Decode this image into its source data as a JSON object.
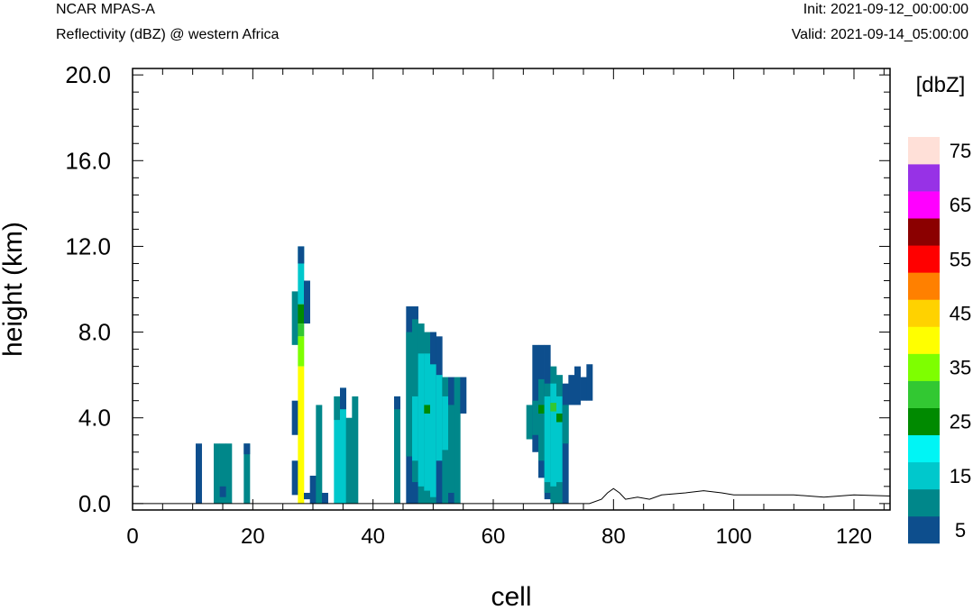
{
  "header": {
    "left_title": "NCAR MPAS-A",
    "left_subtitle": "Reflectivity (dBZ) @ western Africa",
    "init": "Init: 2021-09-12_00:00:00",
    "valid": "Valid: 2021-09-14_05:00:00"
  },
  "colorbar": {
    "unit_label": "[dbZ]",
    "labels": [
      "5",
      "15",
      "25",
      "35",
      "45",
      "55",
      "65",
      "75"
    ],
    "colors": [
      "#0d4e8d",
      "#00878a",
      "#00c8cc",
      "#00f5f5",
      "#008a00",
      "#32c832",
      "#7eff00",
      "#ffff00",
      "#ffd200",
      "#ff8000",
      "#ff0000",
      "#8b0000",
      "#ff00ff",
      "#9732e6",
      "#ffe0d8"
    ]
  },
  "chart_data": {
    "type": "heatmap",
    "title": "Reflectivity (dBZ) @ western Africa",
    "xlabel": "cell",
    "ylabel": "height (km)",
    "xlim": [
      0,
      126
    ],
    "ylim": [
      -0.3,
      20.3
    ],
    "x_ticks": [
      0,
      20,
      40,
      60,
      80,
      100,
      120
    ],
    "y_ticks": [
      "0.0",
      "4.0",
      "8.0",
      "12.0",
      "16.0",
      "20.0"
    ],
    "y_tick_values": [
      0,
      4,
      8,
      12,
      16,
      20
    ],
    "x_tick_labels": [
      "0",
      "20",
      "40",
      "60",
      "80",
      "100",
      "120"
    ],
    "cells": [
      {
        "x": 11,
        "y0": 0,
        "y1": 2.8,
        "c": 0
      },
      {
        "x": 14,
        "y0": 0,
        "y1": 2.8,
        "c": 1
      },
      {
        "x": 15,
        "y0": 0,
        "y1": 2.8,
        "c": 1
      },
      {
        "x": 16,
        "y0": 0,
        "y1": 2.8,
        "c": 1
      },
      {
        "x": 15,
        "y0": 0.3,
        "y1": 0.8,
        "c": 0
      },
      {
        "x": 19,
        "y0": 0,
        "y1": 2.8,
        "c": 1
      },
      {
        "x": 19,
        "y0": 2.3,
        "y1": 2.8,
        "c": 0
      },
      {
        "x": 27,
        "y0": 7.4,
        "y1": 9.9,
        "c": 1
      },
      {
        "x": 27,
        "y0": 3.2,
        "y1": 4.8,
        "c": 0
      },
      {
        "x": 27,
        "y0": 0.4,
        "y1": 2.0,
        "c": 0
      },
      {
        "x": 28,
        "y0": 9.3,
        "y1": 12.0,
        "c": 2
      },
      {
        "x": 28,
        "y0": 8.4,
        "y1": 9.3,
        "c": 4
      },
      {
        "x": 28,
        "y0": 7.8,
        "y1": 8.4,
        "c": 5
      },
      {
        "x": 28,
        "y0": 6.4,
        "y1": 7.8,
        "c": 6
      },
      {
        "x": 28,
        "y0": 0,
        "y1": 6.4,
        "c": 7
      },
      {
        "x": 28,
        "y0": 11.2,
        "y1": 12.0,
        "c": 0
      },
      {
        "x": 29,
        "y0": 8.4,
        "y1": 10.4,
        "c": 0
      },
      {
        "x": 29,
        "y0": 0.2,
        "y1": 0.5,
        "c": 0
      },
      {
        "x": 30,
        "y0": 0,
        "y1": 1.3,
        "c": 0
      },
      {
        "x": 31,
        "y0": 0,
        "y1": 4.6,
        "c": 1
      },
      {
        "x": 32,
        "y0": 0,
        "y1": 0.5,
        "c": 0
      },
      {
        "x": 34,
        "y0": 0,
        "y1": 5.0,
        "c": 2
      },
      {
        "x": 34,
        "y0": 3.9,
        "y1": 5.0,
        "c": 1
      },
      {
        "x": 35,
        "y0": 0,
        "y1": 5.4,
        "c": 2
      },
      {
        "x": 35,
        "y0": 4.4,
        "y1": 5.4,
        "c": 0
      },
      {
        "x": 36,
        "y0": 0,
        "y1": 4.0,
        "c": 1
      },
      {
        "x": 37,
        "y0": 0,
        "y1": 5.0,
        "c": 1
      },
      {
        "x": 44,
        "y0": 0,
        "y1": 5.0,
        "c": 1
      },
      {
        "x": 44,
        "y0": 4.4,
        "y1": 5.0,
        "c": 0
      },
      {
        "x": 46,
        "y0": 0,
        "y1": 9.2,
        "c": 0
      },
      {
        "x": 46,
        "y0": 2.2,
        "y1": 8.0,
        "c": 1
      },
      {
        "x": 47,
        "y0": 0,
        "y1": 9.2,
        "c": 0
      },
      {
        "x": 47,
        "y0": 1.0,
        "y1": 8.6,
        "c": 1
      },
      {
        "x": 47,
        "y0": 2.0,
        "y1": 5.0,
        "c": 2
      },
      {
        "x": 48,
        "y0": 0,
        "y1": 8.4,
        "c": 1
      },
      {
        "x": 48,
        "y0": 0.8,
        "y1": 7.0,
        "c": 2
      },
      {
        "x": 49,
        "y0": 0,
        "y1": 8.0,
        "c": 1
      },
      {
        "x": 49,
        "y0": 0.6,
        "y1": 7.0,
        "c": 2
      },
      {
        "x": 49,
        "y0": 4.2,
        "y1": 4.6,
        "c": 4
      },
      {
        "x": 50,
        "y0": 0,
        "y1": 8.0,
        "c": 1
      },
      {
        "x": 50,
        "y0": 0.3,
        "y1": 6.5,
        "c": 2
      },
      {
        "x": 50,
        "y0": 6.5,
        "y1": 8.0,
        "c": 0
      },
      {
        "x": 51,
        "y0": 0,
        "y1": 7.8,
        "c": 0
      },
      {
        "x": 51,
        "y0": 2.0,
        "y1": 6.0,
        "c": 2
      },
      {
        "x": 52,
        "y0": 0,
        "y1": 5.9,
        "c": 1
      },
      {
        "x": 52,
        "y0": 2.5,
        "y1": 5.0,
        "c": 2
      },
      {
        "x": 53,
        "y0": 0,
        "y1": 5.9,
        "c": 0
      },
      {
        "x": 53,
        "y0": 0.5,
        "y1": 4.6,
        "c": 1
      },
      {
        "x": 54,
        "y0": 0,
        "y1": 5.9,
        "c": 1
      },
      {
        "x": 55,
        "y0": 4.2,
        "y1": 5.9,
        "c": 0
      },
      {
        "x": 66,
        "y0": 3.0,
        "y1": 4.6,
        "c": 1
      },
      {
        "x": 67,
        "y0": 2.4,
        "y1": 7.4,
        "c": 0
      },
      {
        "x": 67,
        "y0": 3.2,
        "y1": 4.8,
        "c": 1
      },
      {
        "x": 68,
        "y0": 1.2,
        "y1": 7.4,
        "c": 0
      },
      {
        "x": 68,
        "y0": 2.0,
        "y1": 5.8,
        "c": 1
      },
      {
        "x": 68,
        "y0": 4.2,
        "y1": 4.6,
        "c": 4
      },
      {
        "x": 69,
        "y0": 0.2,
        "y1": 7.4,
        "c": 0
      },
      {
        "x": 69,
        "y0": 0.5,
        "y1": 5.6,
        "c": 1
      },
      {
        "x": 69,
        "y0": 1.0,
        "y1": 5.0,
        "c": 2
      },
      {
        "x": 70,
        "y0": 0,
        "y1": 6.4,
        "c": 1
      },
      {
        "x": 70,
        "y0": 0.8,
        "y1": 5.6,
        "c": 2
      },
      {
        "x": 70,
        "y0": 4.3,
        "y1": 4.7,
        "c": 5
      },
      {
        "x": 71,
        "y0": 0,
        "y1": 6.0,
        "c": 1
      },
      {
        "x": 71,
        "y0": 1.0,
        "y1": 5.0,
        "c": 2
      },
      {
        "x": 71,
        "y0": 3.8,
        "y1": 4.2,
        "c": 4
      },
      {
        "x": 72,
        "y0": 0,
        "y1": 5.6,
        "c": 0
      },
      {
        "x": 72,
        "y0": 2.8,
        "y1": 4.6,
        "c": 1
      },
      {
        "x": 73,
        "y0": 4.6,
        "y1": 6.0,
        "c": 0
      },
      {
        "x": 74,
        "y0": 4.6,
        "y1": 6.4,
        "c": 0
      },
      {
        "x": 75,
        "y0": 4.8,
        "y1": 5.9,
        "c": 0
      },
      {
        "x": 76,
        "y0": 4.8,
        "y1": 6.5,
        "c": 0
      }
    ],
    "terrain": [
      [
        0,
        0
      ],
      [
        76,
        0
      ],
      [
        78,
        0.2
      ],
      [
        79,
        0.5
      ],
      [
        80,
        0.7
      ],
      [
        81,
        0.5
      ],
      [
        82,
        0.2
      ],
      [
        84,
        0.3
      ],
      [
        86,
        0.2
      ],
      [
        88,
        0.4
      ],
      [
        92,
        0.5
      ],
      [
        95,
        0.6
      ],
      [
        98,
        0.5
      ],
      [
        100,
        0.4
      ],
      [
        110,
        0.4
      ],
      [
        115,
        0.3
      ],
      [
        120,
        0.4
      ],
      [
        126,
        0.35
      ]
    ]
  }
}
